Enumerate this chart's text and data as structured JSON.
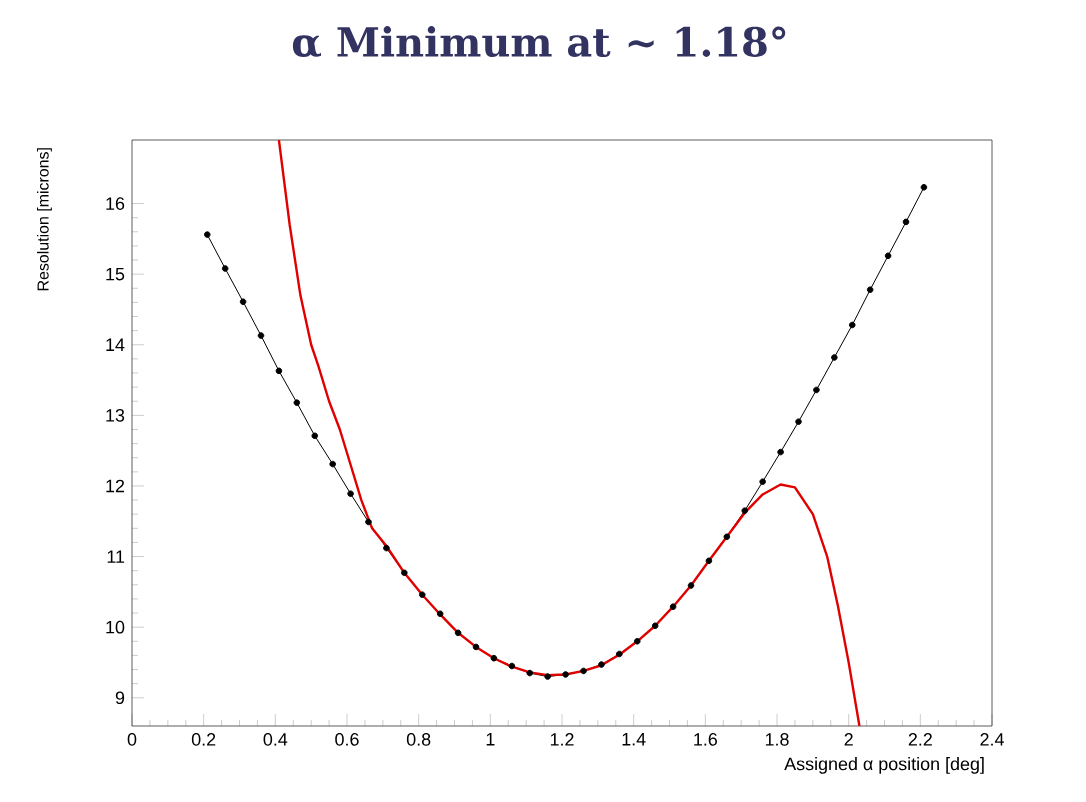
{
  "chart_data": {
    "type": "line",
    "title": "α Minimum at ~ 1.18°",
    "xlabel": "Assigned α position [deg]",
    "ylabel": "Resolution [microns]",
    "xlim": [
      0,
      2.4
    ],
    "ylim": [
      8.6,
      16.9
    ],
    "xticks": [
      0,
      0.2,
      0.4,
      0.6,
      0.8,
      1,
      1.2,
      1.4,
      1.6,
      1.8,
      2,
      2.2,
      2.4
    ],
    "yticks": [
      9,
      10,
      11,
      12,
      13,
      14,
      15,
      16
    ],
    "series": [
      {
        "color": "#000000",
        "marker": "circle",
        "x": [
          0.21,
          0.26,
          0.31,
          0.36,
          0.41,
          0.46,
          0.51,
          0.56,
          0.61,
          0.66,
          0.71,
          0.76,
          0.81,
          0.86,
          0.91,
          0.96,
          1.01,
          1.06,
          1.11,
          1.16,
          1.21,
          1.26,
          1.31,
          1.36,
          1.41,
          1.46,
          1.51,
          1.56,
          1.61,
          1.66,
          1.71,
          1.76,
          1.81,
          1.86,
          1.91,
          1.96,
          2.01,
          2.06,
          2.11,
          2.16,
          2.21
        ],
        "values": [
          15.56,
          15.08,
          14.61,
          14.13,
          13.63,
          13.18,
          12.71,
          12.31,
          11.89,
          11.49,
          11.12,
          10.77,
          10.46,
          10.19,
          9.92,
          9.72,
          9.56,
          9.45,
          9.35,
          9.3,
          9.33,
          9.38,
          9.47,
          9.62,
          9.8,
          10.02,
          10.29,
          10.59,
          10.94,
          11.28,
          11.65,
          12.06,
          12.48,
          12.91,
          13.36,
          13.82,
          14.28,
          14.78,
          15.26,
          15.74,
          16.23
        ]
      },
      {
        "color": "#e00000",
        "x": [
          0.41,
          0.44,
          0.47,
          0.5,
          0.52,
          0.55,
          0.58,
          0.61,
          0.64,
          0.67,
          0.71,
          0.76,
          0.81,
          0.86,
          0.91,
          0.96,
          1.01,
          1.06,
          1.11,
          1.16,
          1.21,
          1.26,
          1.31,
          1.36,
          1.41,
          1.46,
          1.51,
          1.56,
          1.61,
          1.66,
          1.71,
          1.76,
          1.81,
          1.85,
          1.9,
          1.94,
          1.97,
          2.0,
          2.03
        ],
        "values": [
          16.9,
          15.7,
          14.7,
          14.0,
          13.7,
          13.2,
          12.8,
          12.3,
          11.8,
          11.4,
          11.15,
          10.77,
          10.46,
          10.18,
          9.92,
          9.72,
          9.56,
          9.44,
          9.36,
          9.32,
          9.33,
          9.38,
          9.46,
          9.61,
          9.8,
          10.02,
          10.29,
          10.59,
          10.94,
          11.28,
          11.62,
          11.88,
          12.02,
          11.98,
          11.6,
          11.0,
          10.3,
          9.5,
          8.6
        ]
      }
    ]
  }
}
